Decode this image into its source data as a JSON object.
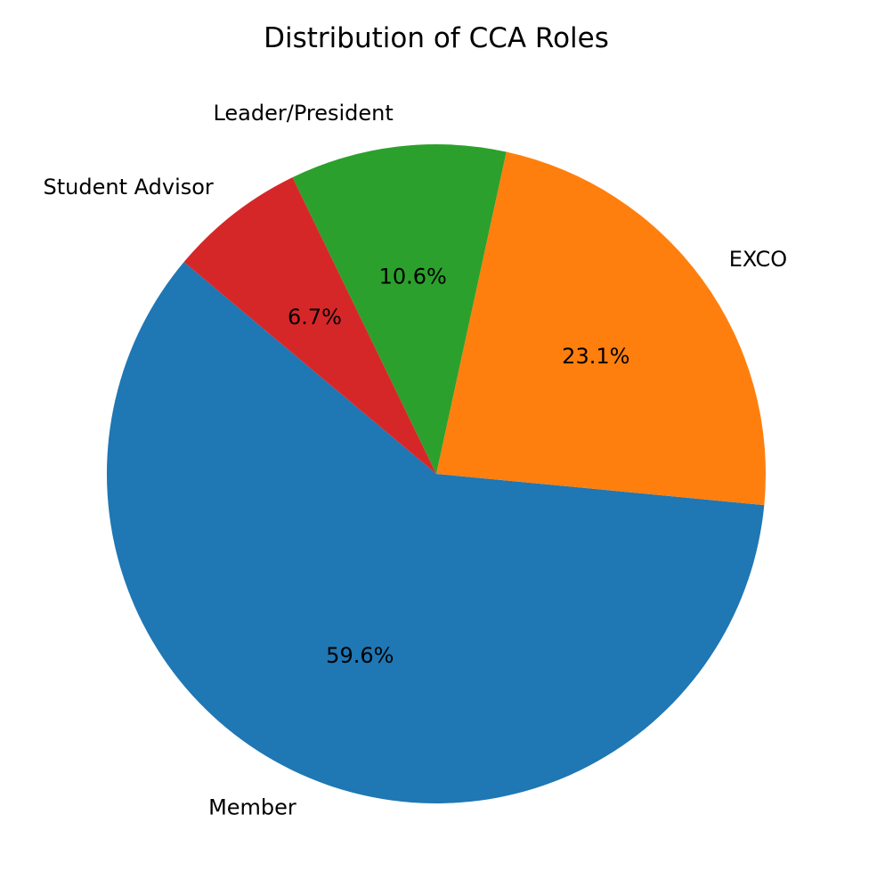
{
  "chart_data": {
    "type": "pie",
    "title": "Distribution of CCA Roles",
    "start_angle_deg": 140,
    "direction": "counterclockwise",
    "slices": [
      {
        "label": "Member",
        "value": 59.6,
        "pct_label": "59.6%",
        "color": "#1f77b4"
      },
      {
        "label": "EXCO",
        "value": 23.1,
        "pct_label": "23.1%",
        "color": "#ff7f0e"
      },
      {
        "label": "Leader/President",
        "value": 10.6,
        "pct_label": "10.6%",
        "color": "#2ca02c"
      },
      {
        "label": "Student Advisor",
        "value": 6.7,
        "pct_label": "6.7%",
        "color": "#d62728"
      }
    ]
  }
}
